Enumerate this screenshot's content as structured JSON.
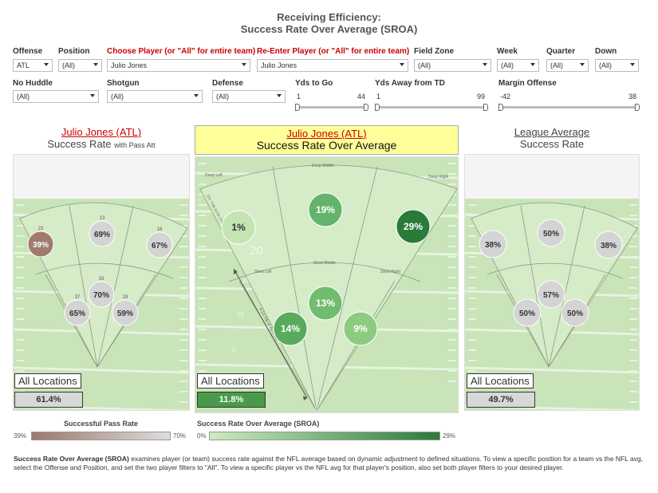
{
  "title": {
    "line1": "Receiving Efficiency:",
    "line2": "Success Rate Over Average (SROA)"
  },
  "filters_row1": [
    {
      "id": "offense",
      "label": "Offense",
      "value": "ATL",
      "red": false
    },
    {
      "id": "position",
      "label": "Position",
      "value": "(All)",
      "red": false
    },
    {
      "id": "player1",
      "label": "Choose Player (or \"All\" for entire team)",
      "value": "Julio Jones",
      "red": true
    },
    {
      "id": "player2",
      "label": "Re-Enter Player (or \"All\" for entire team)",
      "value": "Julio Jones",
      "red": true
    },
    {
      "id": "fieldzone",
      "label": "Field Zone",
      "value": "(All)",
      "red": false
    },
    {
      "id": "week",
      "label": "Week",
      "value": "(All)",
      "red": false
    },
    {
      "id": "quarter",
      "label": "Quarter",
      "value": "(All)",
      "red": false
    },
    {
      "id": "down",
      "label": "Down",
      "value": "(All)",
      "red": false
    }
  ],
  "filters_row2": [
    {
      "id": "nohuddle",
      "label": "No Huddle",
      "value": "(All)"
    },
    {
      "id": "shotgun",
      "label": "Shotgun",
      "value": "(All)"
    },
    {
      "id": "defense",
      "label": "Defense",
      "value": "(All)"
    }
  ],
  "sliders": [
    {
      "id": "ydstogo",
      "label": "Yds to Go",
      "min": "1",
      "max": "44"
    },
    {
      "id": "ydsawaytd",
      "label": "Yds Away from TD",
      "min": "1",
      "max": "99"
    },
    {
      "id": "margin",
      "label": "Margin Offense",
      "min": "-42",
      "max": "38"
    }
  ],
  "panels": {
    "left": {
      "name": "Julio Jones (ATL)",
      "subtitle": "Success Rate",
      "subtitle_small": "with Pass Att",
      "all_label": "All Locations",
      "all_value": "61.4%",
      "all_color": "#d8d8d8",
      "bubbles": [
        {
          "label": "39%",
          "count": "23",
          "color": "#a07a6e",
          "text_color": "#fff"
        },
        {
          "label": "69%",
          "count": "13",
          "color": "#d4d4d4",
          "text_color": "#333"
        },
        {
          "label": "67%",
          "count": "18",
          "color": "#d4d4d4",
          "text_color": "#333"
        },
        {
          "label": "70%",
          "count": "33",
          "color": "#d4d4d4",
          "text_color": "#333"
        },
        {
          "label": "65%",
          "count": "37",
          "color": "#d4d4d4",
          "text_color": "#333"
        },
        {
          "label": "59%",
          "count": "29",
          "color": "#d4d4d4",
          "text_color": "#333"
        }
      ]
    },
    "center": {
      "name": "Julio Jones (ATL)",
      "subtitle": "Success Rate Over Average",
      "all_label": "All Locations",
      "all_value": "11.8%",
      "all_color": "#4a9a4c",
      "bubbles": [
        {
          "label": "1%",
          "color": "#c4e4b4",
          "text_color": "#333"
        },
        {
          "label": "19%",
          "color": "#63b46a",
          "text_color": "#fff"
        },
        {
          "label": "29%",
          "color": "#2a7a3a",
          "text_color": "#fff"
        },
        {
          "label": "13%",
          "color": "#72bc70",
          "text_color": "#fff"
        },
        {
          "label": "14%",
          "color": "#5aaa5e",
          "text_color": "#fff"
        },
        {
          "label": "9%",
          "color": "#8ccc80",
          "text_color": "#fff"
        }
      ],
      "zones": {
        "deep_left": "Deep Left",
        "deep_middle": "Deep Middle",
        "deep_right": "Deep Right",
        "short_left": "Short Left",
        "short_middle": "Short Middle",
        "short_right": "Short Right"
      },
      "axis_deep": "15+ Yds in Air (YIA)",
      "axis_short": "0-14 Yds in Air (YIA)",
      "yard_marks": [
        "20",
        "15",
        "10",
        "5",
        "0"
      ]
    },
    "right": {
      "name": "League Average",
      "subtitle": "Success Rate",
      "all_label": "All Locations",
      "all_value": "49.7%",
      "all_color": "#d8d8d8",
      "bubbles": [
        {
          "label": "38%",
          "color": "#d4d4d4",
          "text_color": "#333"
        },
        {
          "label": "50%",
          "color": "#d4d4d4",
          "text_color": "#333"
        },
        {
          "label": "38%",
          "color": "#d4d4d4",
          "text_color": "#333"
        },
        {
          "label": "57%",
          "color": "#d4d4d4",
          "text_color": "#333"
        },
        {
          "label": "50%",
          "color": "#d4d4d4",
          "text_color": "#333"
        },
        {
          "label": "50%",
          "color": "#d4d4d4",
          "text_color": "#333"
        }
      ]
    }
  },
  "legend": {
    "left": {
      "title": "Successful Pass Rate",
      "min": "39%",
      "max": "70%",
      "colors": [
        "#9b786c",
        "#ddd"
      ]
    },
    "right": {
      "title": "Success Rate Over Average (SROA)",
      "min": "0%",
      "max": "29%",
      "colors": [
        "#ccecc0",
        "#2a7a3a"
      ]
    }
  },
  "footnote": {
    "bold": "Success Rate Over Average (SROA)",
    "text": " examines player (or team) success rate against the NFL average based on dynamic adjustment to defined situations. To view a specific position for a team vs the NFL avg, select the Offense and Position, and set the two player filters to \"All\". To view a specific player vs the NFL avg for that player's position, also set both player filters to your desired player."
  }
}
